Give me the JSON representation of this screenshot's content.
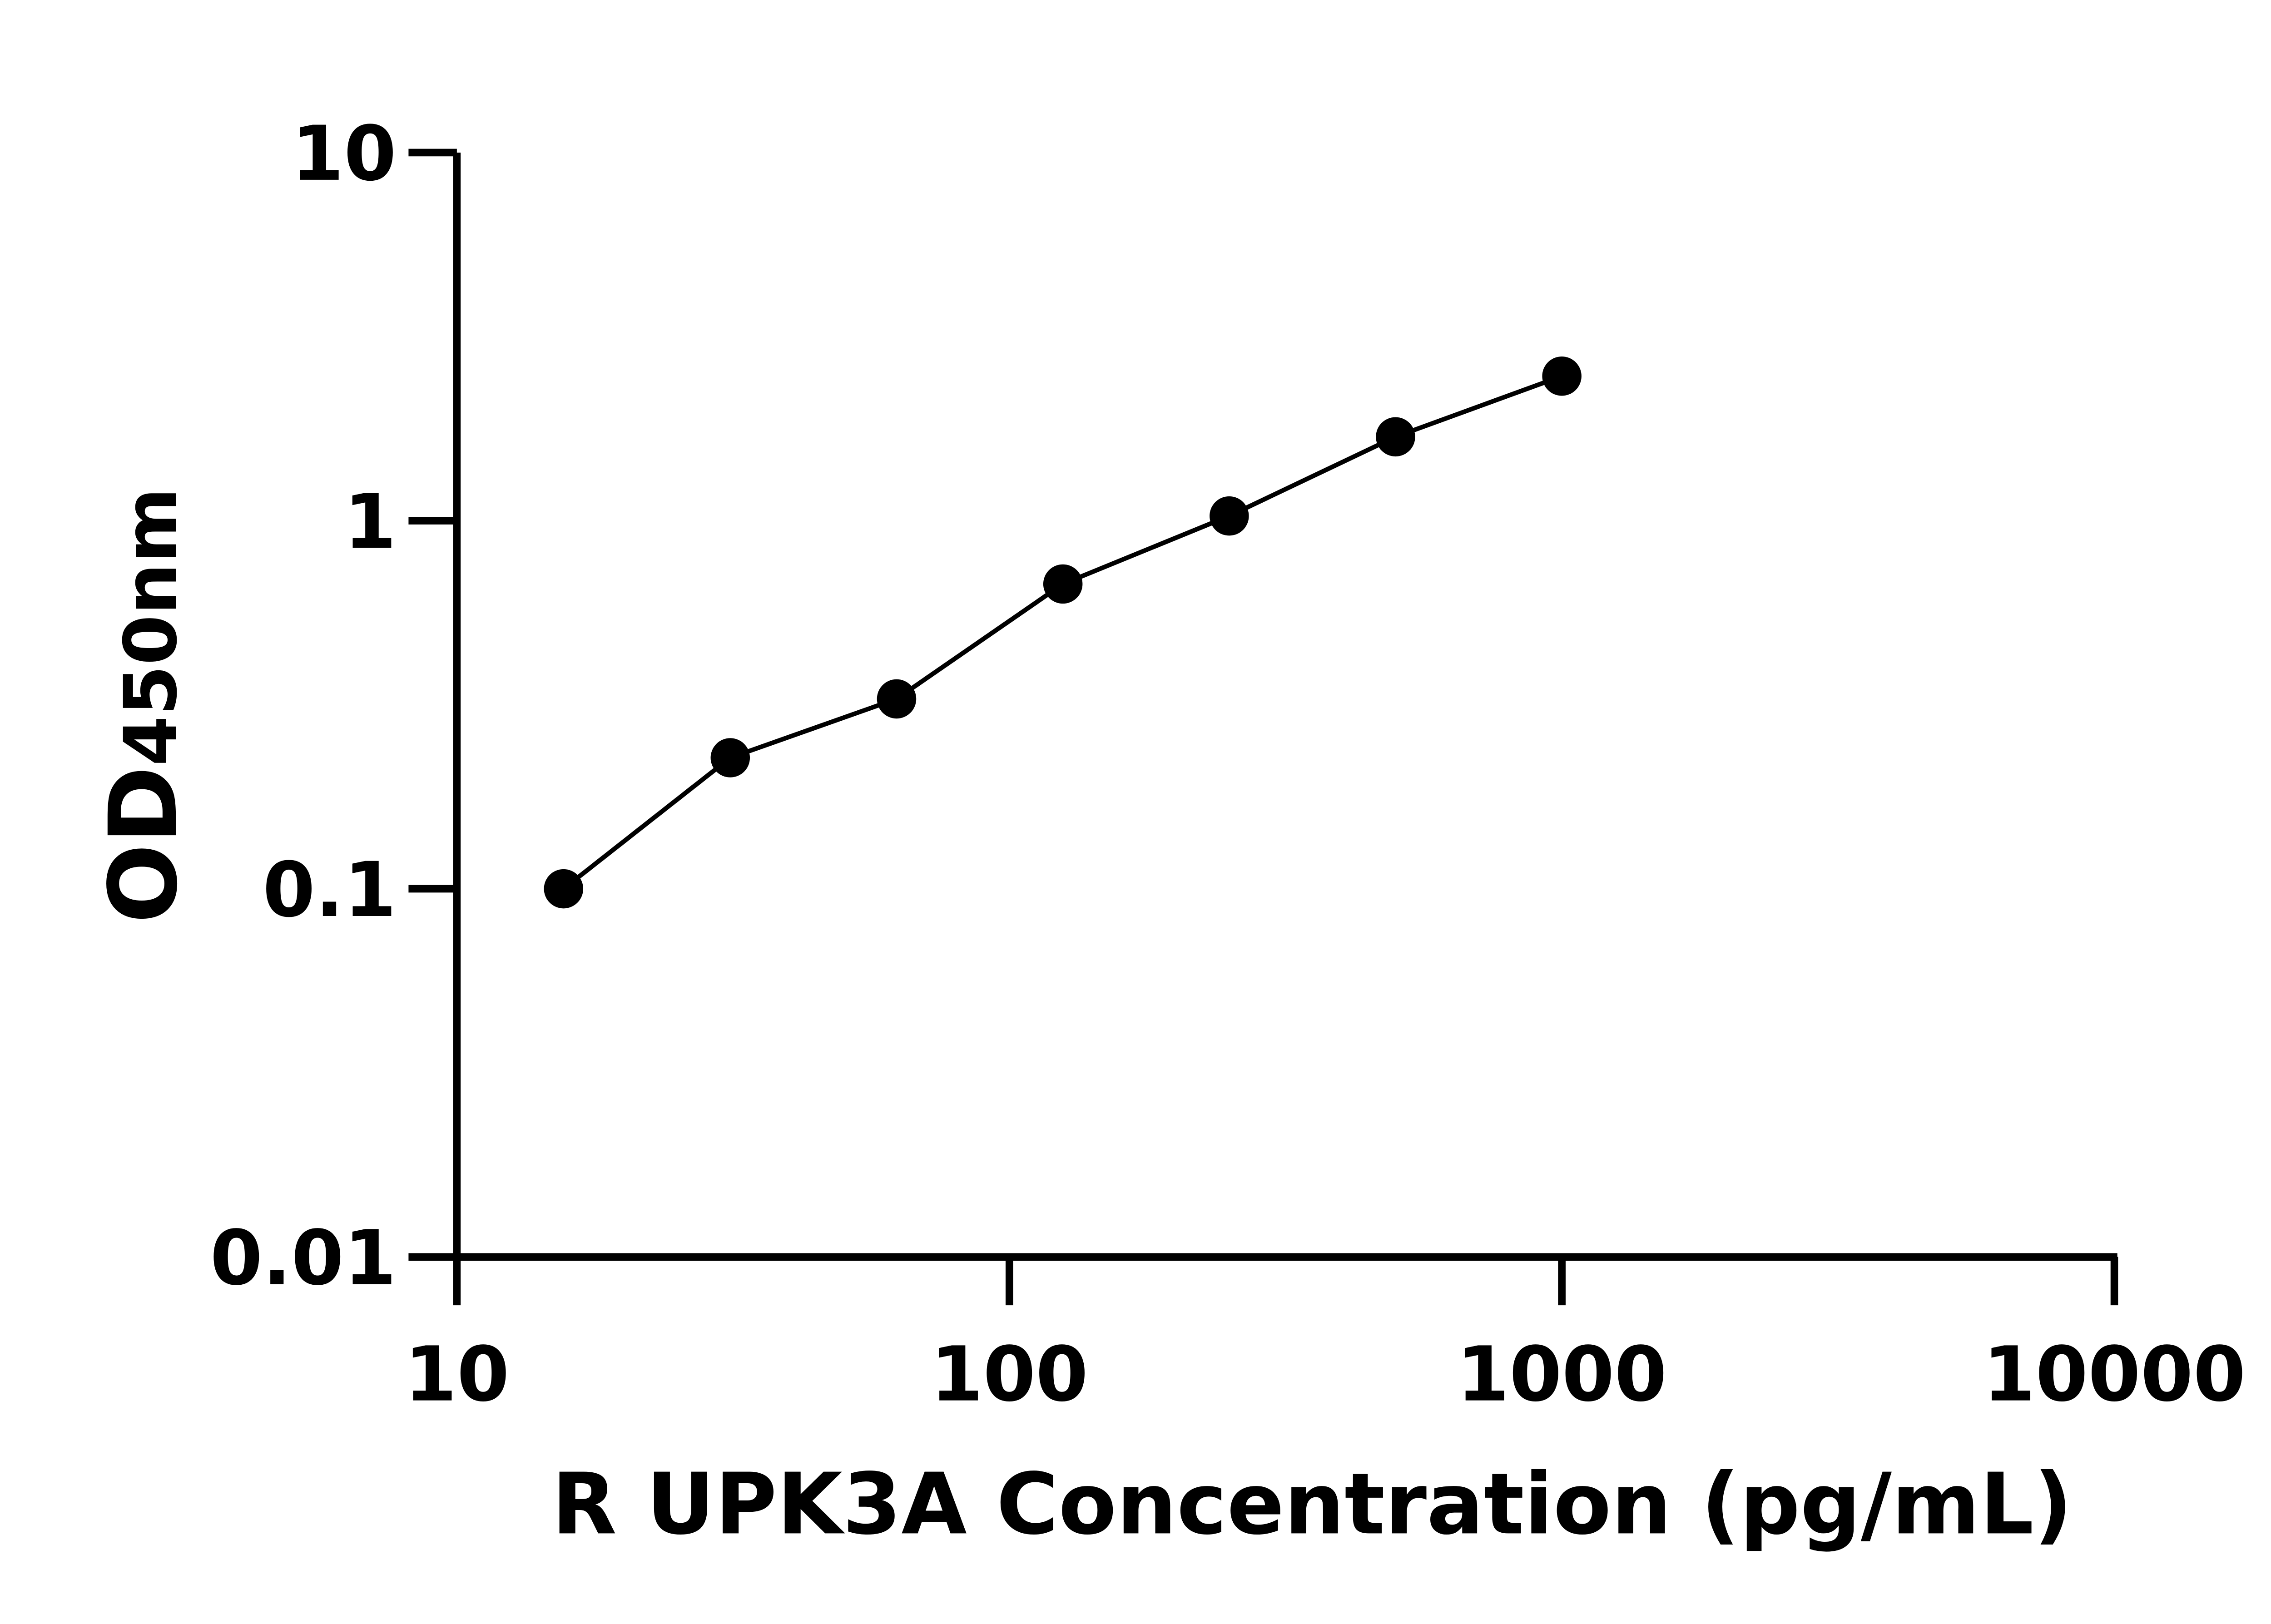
{
  "chart_data": {
    "type": "line",
    "title": "",
    "xlabel": "R UPK3A Concentration (pg/mL)",
    "ylabel": {
      "main": "OD",
      "sub": "450nm"
    },
    "xscale": "log",
    "yscale": "log",
    "xlim": [
      10,
      10000
    ],
    "ylim": [
      0.01,
      10
    ],
    "xticks": [
      "10",
      "100",
      "1000",
      "10000"
    ],
    "yticks": [
      "0.01",
      "0.1",
      "1",
      "10"
    ],
    "grid": false,
    "legend": "none",
    "series": [
      {
        "x": [
          15.6,
          31.25,
          62.5,
          125,
          250,
          500,
          1000
        ],
        "y": [
          0.1,
          0.227,
          0.328,
          0.673,
          1.03,
          1.69,
          2.47
        ],
        "marker": "filled-circle",
        "color": "#000000"
      }
    ]
  }
}
